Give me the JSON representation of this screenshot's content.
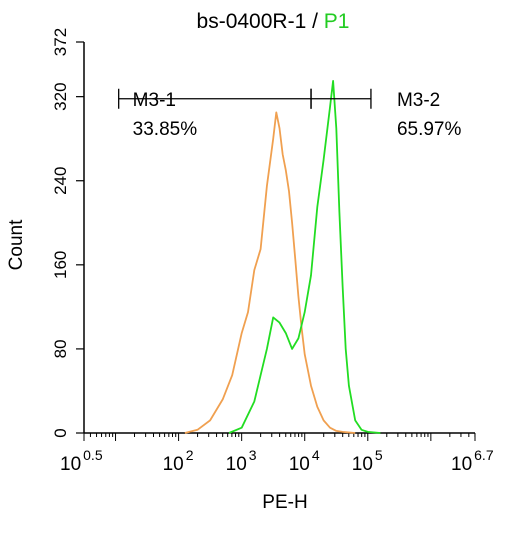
{
  "title": {
    "main": "bs-0400R-1 / ",
    "highlight": "P1",
    "highlight_color": "#22cc22"
  },
  "chart_data": {
    "type": "line",
    "xlabel": "PE-H",
    "ylabel": "Count",
    "x_scale": "log",
    "xlim_log10": [
      0.5,
      6.7
    ],
    "ylim": [
      0,
      372
    ],
    "y_ticks": [
      0,
      80,
      160,
      240,
      320,
      372
    ],
    "x_ticks": [
      {
        "base": "10",
        "exp": "0.5",
        "log10": 0.5
      },
      {
        "base": "10",
        "exp": "2",
        "log10": 2
      },
      {
        "base": "10",
        "exp": "3",
        "log10": 3
      },
      {
        "base": "10",
        "exp": "4",
        "log10": 4
      },
      {
        "base": "10",
        "exp": "5",
        "log10": 5
      },
      {
        "base": "10",
        "exp": "6.7",
        "log10": 6.7
      }
    ],
    "series": [
      {
        "color": "#f0a050",
        "points_log10_x": [
          2.1,
          2.3,
          2.5,
          2.7,
          2.85,
          3.0,
          3.1,
          3.2,
          3.3,
          3.4,
          3.5,
          3.55,
          3.6,
          3.65,
          3.7,
          3.75,
          3.8,
          3.85,
          3.9,
          3.95,
          4.0,
          4.1,
          4.2,
          4.3,
          4.4,
          4.5,
          4.6,
          4.8
        ],
        "values": [
          0,
          3,
          12,
          32,
          55,
          95,
          115,
          155,
          175,
          235,
          280,
          305,
          290,
          265,
          250,
          230,
          200,
          165,
          130,
          100,
          75,
          45,
          25,
          12,
          5,
          2,
          1,
          0
        ]
      },
      {
        "color": "#22dd22",
        "points_log10_x": [
          2.8,
          3.0,
          3.2,
          3.3,
          3.4,
          3.5,
          3.6,
          3.7,
          3.8,
          3.9,
          4.0,
          4.1,
          4.2,
          4.3,
          4.4,
          4.45,
          4.5,
          4.55,
          4.6,
          4.65,
          4.7,
          4.8,
          4.9,
          5.0,
          5.2
        ],
        "values": [
          0,
          5,
          30,
          55,
          80,
          110,
          105,
          95,
          80,
          90,
          115,
          150,
          215,
          260,
          310,
          335,
          290,
          210,
          140,
          80,
          45,
          12,
          3,
          1,
          0
        ]
      }
    ],
    "markers": [
      {
        "label": "M3-1",
        "percent": "33.85%",
        "x0_log10": 1.05,
        "x1_log10": 4.1
      },
      {
        "label": "M3-2",
        "percent": "65.97%",
        "x0_log10": 4.1,
        "x1_log10": 5.05
      }
    ],
    "marker_y": 318
  }
}
